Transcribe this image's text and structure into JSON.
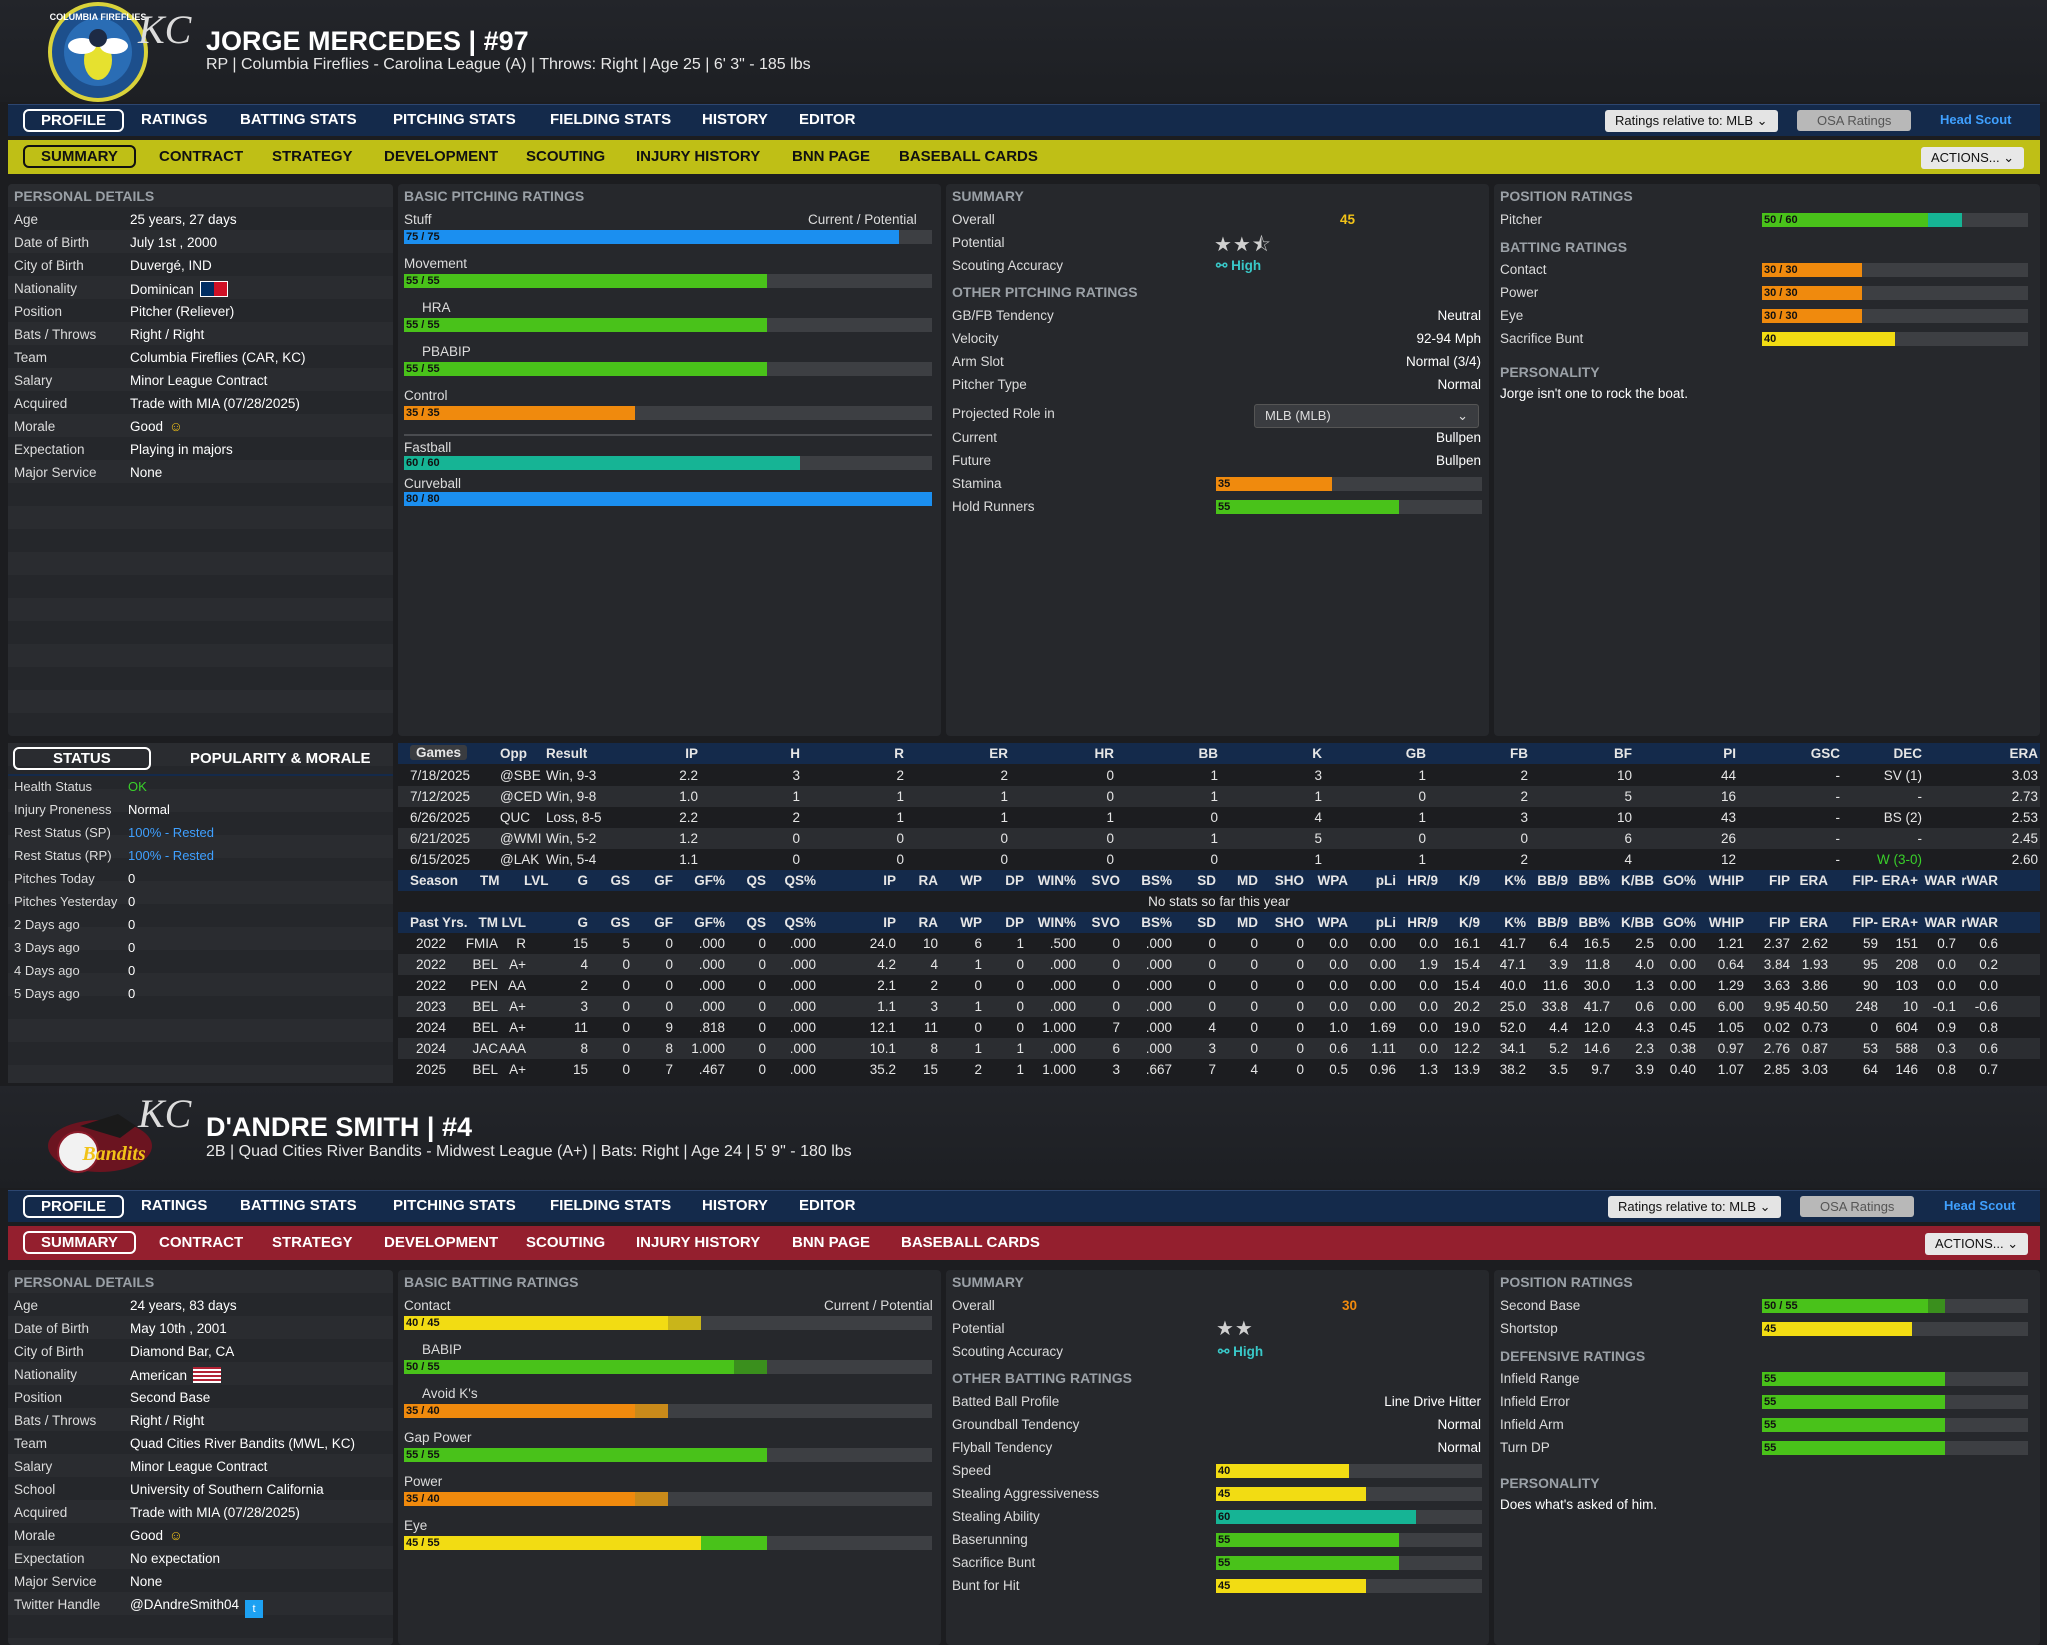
{
  "colors": {
    "nav_blue": "#142a4b",
    "yellow_bar": "#bfbf16",
    "red_bar": "#941f2e",
    "bar_green": "#49c21a",
    "bar_orange": "#f08a0d",
    "bar_yellow": "#f2dc13",
    "bar_blue": "#1b8ff0",
    "bar_teal": "#16b495",
    "ok_green": "#39d02a",
    "link_blue": "#3fa0ff"
  },
  "nav": {
    "tabs": [
      "PROFILE",
      "RATINGS",
      "BATTING STATS",
      "PITCHING STATS",
      "FIELDING STATS",
      "HISTORY",
      "EDITOR"
    ],
    "sub_tabs": [
      "SUMMARY",
      "CONTRACT",
      "STRATEGY",
      "DEVELOPMENT",
      "SCOUTING",
      "INJURY HISTORY",
      "BNN PAGE",
      "BASEBALL CARDS"
    ],
    "ratings_relative": "Ratings relative to: MLB",
    "osa": "OSA Ratings",
    "scout": "Head Scout",
    "actions": "ACTIONS..."
  },
  "p1": {
    "logo_text": "COLUMBIA FIREFLIES",
    "kc": "KC",
    "name": "JORGE MERCEDES  |  #97",
    "sub": "RP | Columbia Fireflies - Carolina League (A)  |  Throws: Right  |  Age 25  |  6' 3\" - 185 lbs",
    "personal": {
      "title": "PERSONAL DETAILS",
      "rows": [
        [
          "Age",
          "25 years, 27 days"
        ],
        [
          "Date of Birth",
          "July 1st , 2000"
        ],
        [
          "City of Birth",
          "Duvergé, IND"
        ],
        [
          "Nationality",
          "Dominican"
        ],
        [
          "Position",
          "Pitcher (Reliever)"
        ],
        [
          "Bats / Throws",
          "Right / Right"
        ],
        [
          "Team",
          "Columbia Fireflies (CAR, KC)"
        ],
        [
          "Salary",
          "Minor League Contract"
        ],
        [
          "Acquired",
          "Trade with MIA (07/28/2025)"
        ],
        [
          "Morale",
          "Good"
        ],
        [
          "Expectation",
          "Playing in majors"
        ],
        [
          "Major Service",
          "None"
        ]
      ]
    },
    "basic": {
      "title": "BASIC PITCHING RATINGS",
      "cp": "Current / Potential",
      "bars": [
        {
          "label": "Stuff",
          "text": "75 / 75",
          "cur": 75,
          "pot": 75,
          "color": "#1b8ff0"
        },
        {
          "label": "Movement",
          "text": "55 / 55",
          "cur": 55,
          "pot": 55,
          "color": "#49c21a"
        },
        {
          "label": "HRA",
          "text": "55 / 55",
          "cur": 55,
          "pot": 55,
          "color": "#49c21a",
          "indent": true
        },
        {
          "label": "PBABIP",
          "text": "55 / 55",
          "cur": 55,
          "pot": 55,
          "color": "#49c21a",
          "indent": true
        },
        {
          "label": "Control",
          "text": "35 / 35",
          "cur": 35,
          "pot": 35,
          "color": "#f08a0d"
        }
      ],
      "pitches": [
        {
          "label": "Fastball",
          "text": "60 / 60",
          "cur": 60,
          "pot": 60,
          "color": "#16b495"
        },
        {
          "label": "Curveball",
          "text": "80 / 80",
          "cur": 80,
          "pot": 80,
          "color": "#1b8ff0"
        }
      ]
    },
    "summary": {
      "title": "SUMMARY",
      "overall_label": "Overall",
      "overall": "45",
      "potential_label": "Potential",
      "stars": "★★⯪",
      "acc_label": "Scouting Accuracy",
      "acc": "High",
      "other_title": "OTHER PITCHING RATINGS",
      "rows": [
        [
          "GB/FB Tendency",
          "Neutral"
        ],
        [
          "Velocity",
          "92-94 Mph"
        ],
        [
          "Arm Slot",
          "Normal (3/4)"
        ],
        [
          "Pitcher Type",
          "Normal"
        ]
      ],
      "proj_label": "Projected Role in",
      "proj_value": "MLB (MLB)",
      "rows2": [
        [
          "Current",
          "Bullpen"
        ],
        [
          "Future",
          "Bullpen"
        ]
      ],
      "bars": [
        {
          "label": "Stamina",
          "text": "35",
          "val": 35,
          "color": "#f08a0d"
        },
        {
          "label": "Hold Runners",
          "text": "55",
          "val": 55,
          "color": "#49c21a"
        }
      ]
    },
    "position": {
      "title": "POSITION RATINGS",
      "bars": [
        {
          "label": "Pitcher",
          "text": "50 / 60",
          "cur": 50,
          "pot": 60,
          "color": "#49c21a"
        }
      ],
      "bat_title": "BATTING RATINGS",
      "bat_bars": [
        {
          "label": "Contact",
          "text": "30 / 30",
          "cur": 30,
          "pot": 30,
          "color": "#f08a0d"
        },
        {
          "label": "Power",
          "text": "30 / 30",
          "cur": 30,
          "pot": 30,
          "color": "#f08a0d"
        },
        {
          "label": "Eye",
          "text": "30 / 30",
          "cur": 30,
          "pot": 30,
          "color": "#f08a0d"
        },
        {
          "label": "Sacrifice Bunt",
          "text": "40",
          "cur": 40,
          "pot": 40,
          "color": "#f2dc13"
        }
      ],
      "pers_title": "PERSONALITY",
      "pers": "Jorge isn't one to rock the boat."
    },
    "status": {
      "tab1": "STATUS",
      "tab2": "POPULARITY & MORALE",
      "rows": [
        [
          "Health Status",
          "OK"
        ],
        [
          "Injury Proneness",
          "Normal"
        ],
        [
          "Rest Status (SP)",
          "100% - Rested"
        ],
        [
          "Rest Status (RP)",
          "100% - Rested"
        ],
        [
          "Pitches Today",
          "0"
        ],
        [
          "Pitches Yesterday",
          "0"
        ],
        [
          "2 Days ago",
          "0"
        ],
        [
          "3 Days ago",
          "0"
        ],
        [
          "4 Days ago",
          "0"
        ],
        [
          "5 Days ago",
          "0"
        ]
      ]
    },
    "games": {
      "headers": [
        "Games",
        "Opp",
        "Result",
        "IP",
        "H",
        "R",
        "ER",
        "HR",
        "BB",
        "K",
        "GB",
        "FB",
        "BF",
        "PI",
        "GSC",
        "DEC",
        "ERA"
      ],
      "rows": [
        [
          "7/18/2025",
          "@SBE",
          "Win, 9-3",
          "2.2",
          "3",
          "2",
          "2",
          "0",
          "1",
          "3",
          "1",
          "2",
          "10",
          "44",
          "-",
          "SV (1)",
          "3.03"
        ],
        [
          "7/12/2025",
          "@CED",
          "Win, 9-8",
          "1.0",
          "1",
          "1",
          "1",
          "0",
          "1",
          "1",
          "0",
          "2",
          "5",
          "16",
          "-",
          "-",
          "2.73"
        ],
        [
          "6/26/2025",
          "QUC",
          "Loss, 8-5",
          "2.2",
          "2",
          "1",
          "1",
          "1",
          "0",
          "4",
          "1",
          "3",
          "10",
          "43",
          "-",
          "BS (2)",
          "2.53"
        ],
        [
          "6/21/2025",
          "@WMI",
          "Win, 5-2",
          "1.2",
          "0",
          "0",
          "0",
          "0",
          "1",
          "5",
          "0",
          "0",
          "6",
          "26",
          "-",
          "-",
          "2.45"
        ],
        [
          "6/15/2025",
          "@LAK",
          "Win, 5-4",
          "1.1",
          "0",
          "0",
          "0",
          "0",
          "0",
          "1",
          "1",
          "2",
          "4",
          "12",
          "-",
          "W (3-0)",
          "2.60"
        ]
      ]
    },
    "season": {
      "headers": [
        "Season",
        "TM",
        "LVL",
        "G",
        "GS",
        "GF",
        "GF%",
        "QS",
        "QS%",
        "IP",
        "RA",
        "WP",
        "DP",
        "WIN%",
        "SVO",
        "BS%",
        "SD",
        "MD",
        "SHO",
        "WPA",
        "pLi",
        "HR/9",
        "K/9",
        "K%",
        "BB/9",
        "BB%",
        "K/BB",
        "GO%",
        "WHIP",
        "FIP",
        "ERA",
        "FIP-",
        "ERA+",
        "WAR",
        "rWAR"
      ],
      "empty": "No stats so far this year"
    },
    "past": {
      "headers": [
        "Past Yrs.",
        "TM",
        "LVL",
        "G",
        "GS",
        "GF",
        "GF%",
        "QS",
        "QS%",
        "IP",
        "RA",
        "WP",
        "DP",
        "WIN%",
        "SVO",
        "BS%",
        "SD",
        "MD",
        "SHO",
        "WPA",
        "pLi",
        "HR/9",
        "K/9",
        "K%",
        "BB/9",
        "BB%",
        "K/BB",
        "GO%",
        "WHIP",
        "FIP",
        "ERA",
        "FIP-",
        "ERA+",
        "WAR",
        "rWAR"
      ],
      "rows": [
        [
          "2022",
          "FMIA",
          "R",
          "15",
          "5",
          "0",
          ".000",
          "0",
          ".000",
          "24.0",
          "10",
          "6",
          "1",
          ".500",
          "0",
          ".000",
          "0",
          "0",
          "0",
          "0.0",
          "0.00",
          "0.0",
          "16.1",
          "41.7",
          "6.4",
          "16.5",
          "2.5",
          "0.00",
          "1.21",
          "2.37",
          "2.62",
          "59",
          "151",
          "0.7",
          "0.6"
        ],
        [
          "2022",
          "BEL",
          "A+",
          "4",
          "0",
          "0",
          ".000",
          "0",
          ".000",
          "4.2",
          "4",
          "1",
          "0",
          ".000",
          "0",
          ".000",
          "0",
          "0",
          "0",
          "0.0",
          "0.00",
          "1.9",
          "15.4",
          "47.1",
          "3.9",
          "11.8",
          "4.0",
          "0.00",
          "0.64",
          "3.84",
          "1.93",
          "95",
          "208",
          "0.0",
          "0.2"
        ],
        [
          "2022",
          "PEN",
          "AA",
          "2",
          "0",
          "0",
          ".000",
          "0",
          ".000",
          "2.1",
          "2",
          "0",
          "0",
          ".000",
          "0",
          ".000",
          "0",
          "0",
          "0",
          "0.0",
          "0.00",
          "0.0",
          "15.4",
          "40.0",
          "11.6",
          "30.0",
          "1.3",
          "0.00",
          "1.29",
          "3.63",
          "3.86",
          "90",
          "103",
          "0.0",
          "0.0"
        ],
        [
          "2023",
          "BEL",
          "A+",
          "3",
          "0",
          "0",
          ".000",
          "0",
          ".000",
          "1.1",
          "3",
          "1",
          "0",
          ".000",
          "0",
          ".000",
          "0",
          "0",
          "0",
          "0.0",
          "0.00",
          "0.0",
          "20.2",
          "25.0",
          "33.8",
          "41.7",
          "0.6",
          "0.00",
          "6.00",
          "9.95",
          "40.50",
          "248",
          "10",
          "-0.1",
          "-0.6"
        ],
        [
          "2024",
          "BEL",
          "A+",
          "11",
          "0",
          "9",
          ".818",
          "0",
          ".000",
          "12.1",
          "11",
          "0",
          "0",
          "1.000",
          "7",
          ".000",
          "4",
          "0",
          "0",
          "1.0",
          "1.69",
          "0.0",
          "19.0",
          "52.0",
          "4.4",
          "12.0",
          "4.3",
          "0.45",
          "1.05",
          "0.02",
          "0.73",
          "0",
          "604",
          "0.9",
          "0.8"
        ],
        [
          "2024",
          "JAC",
          "AAA",
          "8",
          "0",
          "8",
          "1.000",
          "0",
          ".000",
          "10.1",
          "8",
          "1",
          "1",
          ".000",
          "6",
          ".000",
          "3",
          "0",
          "0",
          "0.6",
          "1.11",
          "0.0",
          "12.2",
          "34.1",
          "5.2",
          "14.6",
          "2.3",
          "0.38",
          "0.97",
          "2.76",
          "0.87",
          "53",
          "588",
          "0.3",
          "0.6"
        ],
        [
          "2025",
          "BEL",
          "A+",
          "15",
          "0",
          "7",
          ".467",
          "0",
          ".000",
          "35.2",
          "15",
          "2",
          "1",
          "1.000",
          "3",
          ".667",
          "7",
          "4",
          "0",
          "0.5",
          "0.96",
          "1.3",
          "13.9",
          "38.2",
          "3.5",
          "9.7",
          "3.9",
          "0.40",
          "1.07",
          "2.85",
          "3.03",
          "64",
          "146",
          "0.8",
          "0.7"
        ]
      ]
    }
  },
  "p2": {
    "logo_text": "Bandits",
    "kc": "KC",
    "name": "D'ANDRE SMITH  |  #4",
    "sub": "2B | Quad Cities River Bandits - Midwest League (A+)  |  Bats: Right  |  Age 24  |  5' 9\" - 180 lbs",
    "personal": {
      "title": "PERSONAL DETAILS",
      "rows": [
        [
          "Age",
          "24 years, 83 days"
        ],
        [
          "Date of Birth",
          "May 10th , 2001"
        ],
        [
          "City of Birth",
          "Diamond Bar, CA"
        ],
        [
          "Nationality",
          "American"
        ],
        [
          "Position",
          "Second Base"
        ],
        [
          "Bats / Throws",
          "Right / Right"
        ],
        [
          "Team",
          "Quad Cities River Bandits (MWL, KC)"
        ],
        [
          "Salary",
          "Minor League Contract"
        ],
        [
          "School",
          "University of Southern California"
        ],
        [
          "Acquired",
          "Trade with MIA (07/28/2025)"
        ],
        [
          "Morale",
          "Good"
        ],
        [
          "Expectation",
          "No expectation"
        ],
        [
          "Major Service",
          "None"
        ],
        [
          "Twitter Handle",
          "@DAndreSmith04"
        ]
      ]
    },
    "basic": {
      "title": "BASIC BATTING RATINGS",
      "cp": "Current / Potential",
      "bars": [
        {
          "label": "Contact",
          "text": "40 / 45",
          "cur": 40,
          "pot": 45,
          "color": "#f2dc13",
          "pcolor": "#c9b51a"
        },
        {
          "label": "BABIP",
          "text": "50 / 55",
          "cur": 50,
          "pot": 55,
          "color": "#49c21a",
          "pcolor": "#3a8f1d",
          "indent": true
        },
        {
          "label": "Avoid K's",
          "text": "35 / 40",
          "cur": 35,
          "pot": 40,
          "color": "#f08a0d",
          "pcolor": "#c98a1a",
          "indent": true
        },
        {
          "label": "Gap Power",
          "text": "55 / 55",
          "cur": 55,
          "pot": 55,
          "color": "#49c21a"
        },
        {
          "label": "Power",
          "text": "35 / 40",
          "cur": 35,
          "pot": 40,
          "color": "#f08a0d",
          "pcolor": "#c98a1a"
        },
        {
          "label": "Eye",
          "text": "45 / 55",
          "cur": 45,
          "pot": 55,
          "color": "#f2dc13",
          "pcolor": "#49c21a"
        }
      ]
    },
    "summary": {
      "title": "SUMMARY",
      "overall_label": "Overall",
      "overall": "30",
      "potential_label": "Potential",
      "stars": "★★",
      "acc_label": "Scouting Accuracy",
      "acc": "High",
      "other_title": "OTHER BATTING RATINGS",
      "rows": [
        [
          "Batted Ball Profile",
          "Line Drive Hitter"
        ],
        [
          "Groundball Tendency",
          "Normal"
        ],
        [
          "Flyball Tendency",
          "Normal"
        ]
      ],
      "bars": [
        {
          "label": "Speed",
          "text": "40",
          "val": 40,
          "color": "#f2dc13"
        },
        {
          "label": "Stealing Aggressiveness",
          "text": "45",
          "val": 45,
          "color": "#f2dc13"
        },
        {
          "label": "Stealing Ability",
          "text": "60",
          "val": 60,
          "color": "#16b495"
        },
        {
          "label": "Baserunning",
          "text": "55",
          "val": 55,
          "color": "#49c21a"
        },
        {
          "label": "Sacrifice Bunt",
          "text": "55",
          "val": 55,
          "color": "#49c21a"
        },
        {
          "label": "Bunt for Hit",
          "text": "45",
          "val": 45,
          "color": "#f2dc13"
        }
      ]
    },
    "position": {
      "title": "POSITION RATINGS",
      "bars": [
        {
          "label": "Second Base",
          "text": "50 / 55",
          "cur": 50,
          "pot": 55,
          "color": "#49c21a"
        },
        {
          "label": "Shortstop",
          "text": "45",
          "cur": 45,
          "pot": 45,
          "color": "#f2dc13"
        }
      ],
      "def_title": "DEFENSIVE RATINGS",
      "def_bars": [
        {
          "label": "Infield Range",
          "text": "55",
          "cur": 55,
          "pot": 55,
          "color": "#49c21a"
        },
        {
          "label": "Infield Error",
          "text": "55",
          "cur": 55,
          "pot": 55,
          "color": "#49c21a"
        },
        {
          "label": "Infield Arm",
          "text": "55",
          "cur": 55,
          "pot": 55,
          "color": "#49c21a"
        },
        {
          "label": "Turn DP",
          "text": "55",
          "cur": 55,
          "pot": 55,
          "color": "#49c21a"
        }
      ],
      "pers_title": "PERSONALITY",
      "pers": "Does what's asked of him."
    }
  }
}
